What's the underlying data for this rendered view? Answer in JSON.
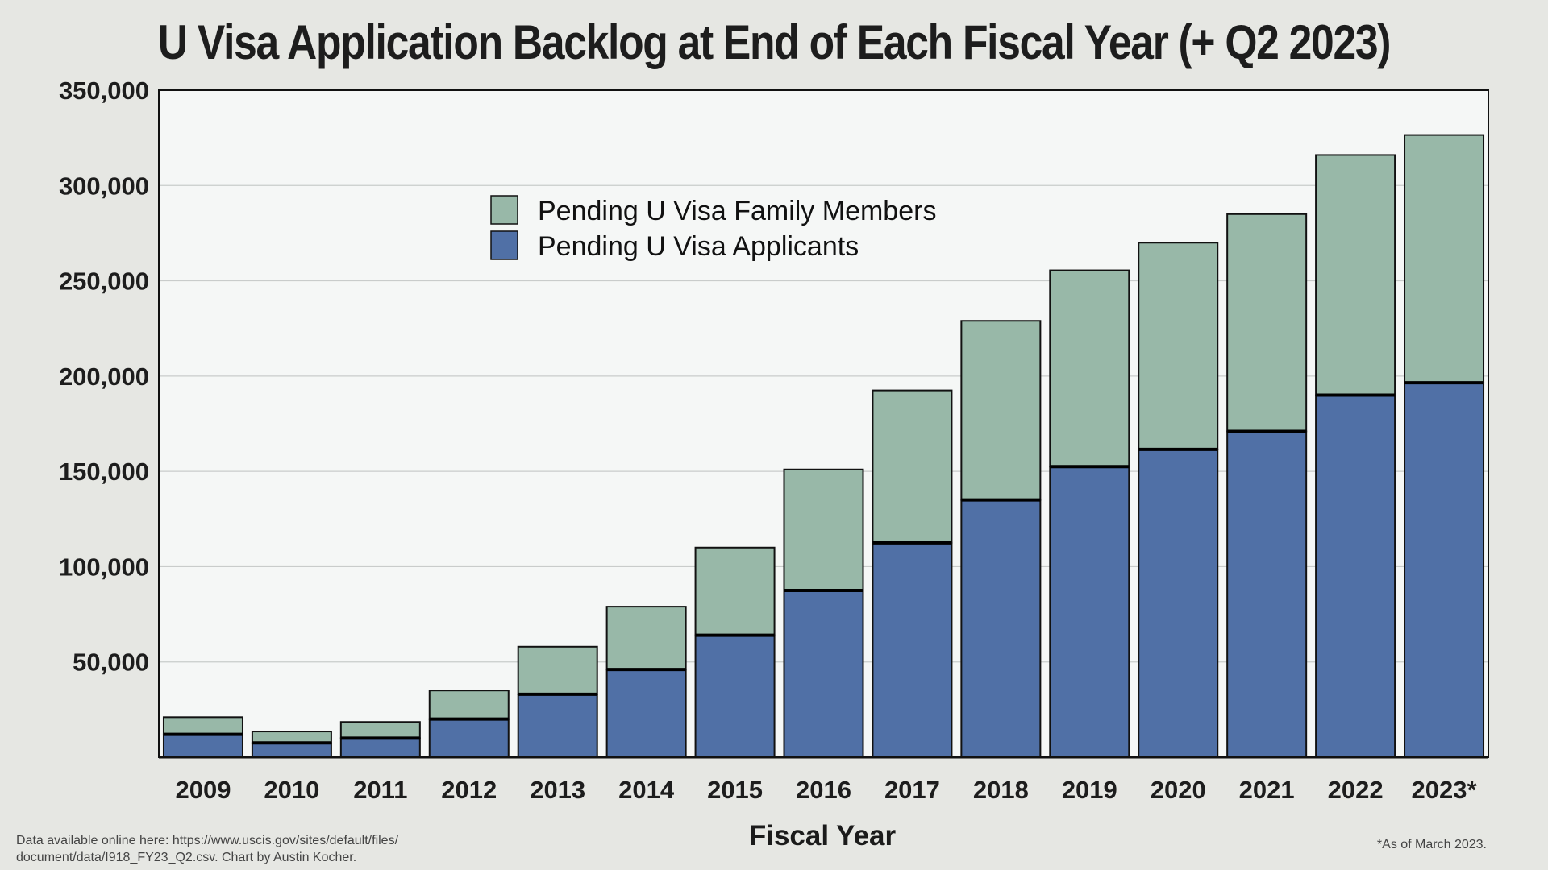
{
  "chart_data": {
    "type": "bar",
    "stacked": true,
    "title": "U Visa Application Backlog at End of Each Fiscal Year (+ Q2 2023)",
    "xlabel": "Fiscal Year",
    "ylabel": "",
    "categories": [
      "2009",
      "2010",
      "2011",
      "2012",
      "2013",
      "2014",
      "2015",
      "2016",
      "2017",
      "2018",
      "2019",
      "2020",
      "2021",
      "2022",
      "2023*"
    ],
    "series": [
      {
        "name": "Pending U Visa Applicants",
        "color": "#5070a6",
        "values": [
          12000,
          7500,
          10000,
          20000,
          33000,
          46000,
          64000,
          87500,
          112500,
          135000,
          152500,
          161500,
          171000,
          190000,
          196500
        ]
      },
      {
        "name": "Pending U Visa Family Members",
        "color": "#98b8a8",
        "values": [
          9000,
          6000,
          8500,
          15000,
          25000,
          33000,
          46000,
          63500,
          80000,
          94000,
          103000,
          108500,
          114000,
          126000,
          130000
        ]
      }
    ],
    "yticks": [
      50000,
      100000,
      150000,
      200000,
      250000,
      300000,
      350000
    ],
    "ytick_labels": [
      "50,000",
      "100,000",
      "150,000",
      "200,000",
      "250,000",
      "300,000",
      "350,000"
    ],
    "ylim": [
      0,
      350000
    ],
    "grid": true,
    "legend_position": "upper-center",
    "legend_order": [
      "Pending U Visa Family Members",
      "Pending U Visa Applicants"
    ],
    "plot_background": "#f5f7f6",
    "page_background": "#e6e7e3"
  },
  "source_note_line1": "Data available online here: https://www.uscis.gov/sites/default/files/",
  "source_note_line2": "document/data/I918_FY23_Q2.csv. Chart by Austin Kocher.",
  "footnote": "*As of March 2023."
}
